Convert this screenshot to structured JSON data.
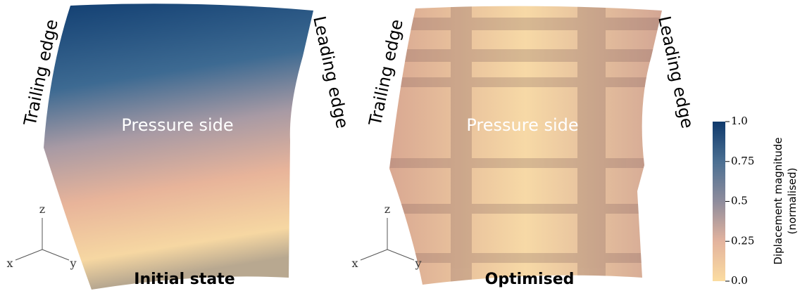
{
  "panels": [
    {
      "title": "Initial state",
      "trailing": "Trailing edge",
      "leading": "Leading edge",
      "side": "Pressure side",
      "axes": {
        "z": "z",
        "x": "x",
        "y": "y"
      }
    },
    {
      "title": "Optimised",
      "trailing": "Trailing edge",
      "leading": "Leading edge",
      "side": "Pressure side",
      "axes": {
        "z": "z",
        "x": "x",
        "y": "y"
      }
    }
  ],
  "colorbar": {
    "label": "Diplacement magnitude",
    "sublabel": "(normalised)",
    "ticks": [
      {
        "value": 1.0,
        "label": "1.0"
      },
      {
        "value": 0.75,
        "label": "0.75"
      },
      {
        "value": 0.5,
        "label": "0.5"
      },
      {
        "value": 0.25,
        "label": "0.25"
      },
      {
        "value": 0.0,
        "label": "0.0"
      }
    ]
  }
}
